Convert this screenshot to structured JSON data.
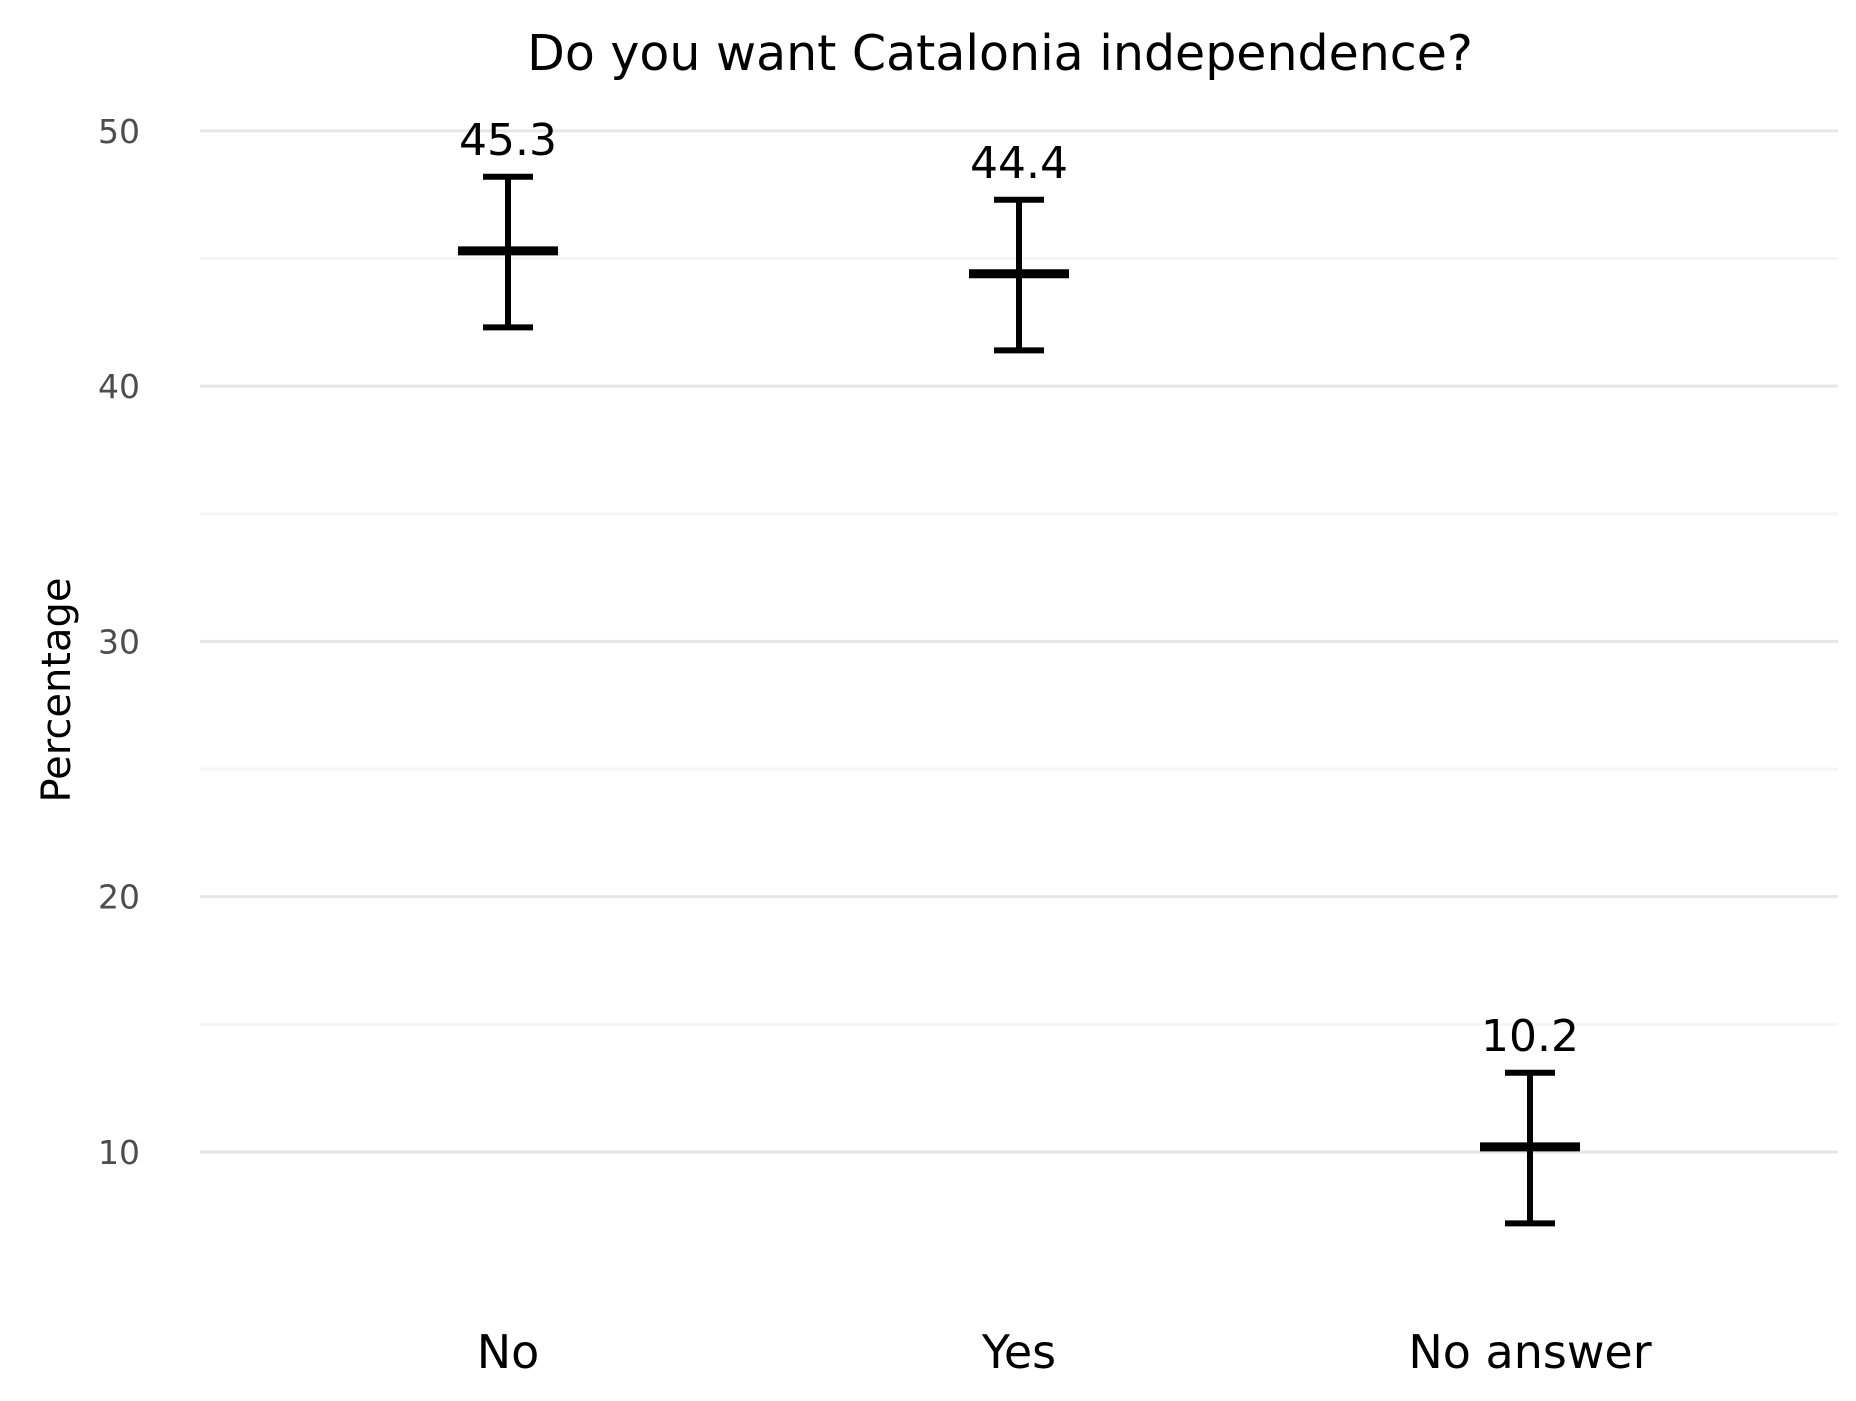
{
  "chart_data": {
    "type": "errorbar",
    "title": "Do you want Catalonia independence?",
    "xlabel": "",
    "ylabel": "Percentage",
    "categories": [
      "No",
      "Yes",
      "No answer"
    ],
    "values": [
      45.3,
      44.4,
      10.2
    ],
    "lower": [
      42.3,
      41.4,
      7.2
    ],
    "upper": [
      48.2,
      47.3,
      13.1
    ],
    "value_labels": [
      "45.3",
      "44.4",
      "10.2"
    ],
    "ylim": [
      4.2,
      51.6
    ],
    "yticks": [
      10,
      20,
      30,
      40,
      50
    ],
    "yminor": [
      15,
      25,
      35,
      45
    ],
    "grid": true,
    "legend": "none",
    "colors": {
      "marks": "#000000",
      "grid_major": "#e6e6e6",
      "grid_minor": "#f5f5f5",
      "tick_text": "#4d4d4d"
    }
  }
}
